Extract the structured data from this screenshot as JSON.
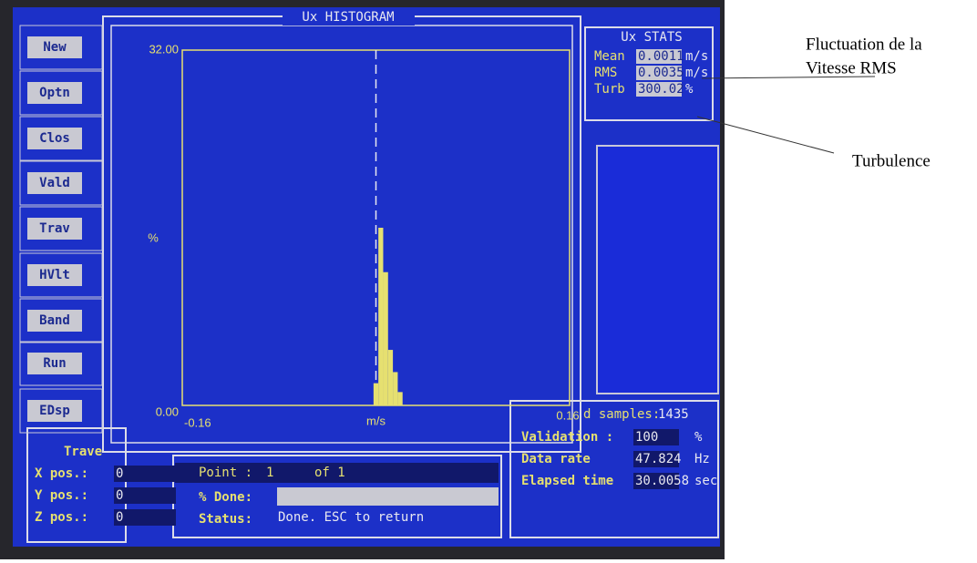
{
  "menu": [
    "New",
    "Optn",
    "Clos",
    "Vald",
    "Trav",
    "HVlt",
    "Band",
    "Run",
    "EDsp"
  ],
  "histogram": {
    "type": "histogram",
    "title": "Ux HISTOGRAM",
    "xlabel": "m/s",
    "ylabel": "%",
    "bins": [
      -0.002,
      0.002,
      0.006,
      0.01,
      0.014,
      0.018,
      0.022
    ],
    "values": [
      2,
      16,
      12,
      5,
      3,
      1.2
    ],
    "color": "#e6e070",
    "xlim": [
      -0.16,
      0.16
    ],
    "ylim": [
      0,
      32
    ],
    "xticks": [
      -0.16,
      0.16
    ],
    "yticks": [
      {
        "value": 0,
        "label": "0.00"
      },
      {
        "value": 32,
        "label": "32.00"
      }
    ],
    "reference_line": 0
  },
  "stats": {
    "title": "Ux STATS",
    "rows": [
      [
        "Mean",
        "0.0011",
        "m/s"
      ],
      [
        "RMS",
        "0.0035",
        "m/s"
      ],
      [
        "Turb",
        "300.02",
        "%"
      ]
    ]
  },
  "position": {
    "title": "Trave",
    "rows": [
      [
        "X pos.:",
        "0"
      ],
      [
        "Y pos.:",
        "0"
      ],
      [
        "Z pos.:",
        "0"
      ]
    ]
  },
  "progress": {
    "point_label": "Point :",
    "point": "1",
    "of": "of 1",
    "done_label": "% Done:",
    "status_label": "Status:",
    "status": "Done. ESC to return"
  },
  "acquisition": {
    "samples_label": "d samples:",
    "samples": "1435",
    "rows": [
      [
        "Validation :",
        "100",
        "%"
      ],
      [
        "Data rate",
        "47.824",
        "Hz"
      ],
      [
        "Elapsed time",
        "30.0058",
        "sec"
      ]
    ]
  },
  "annotations": [
    "Fluctuation de la",
    "Vitesse RMS",
    "Turbulence"
  ]
}
